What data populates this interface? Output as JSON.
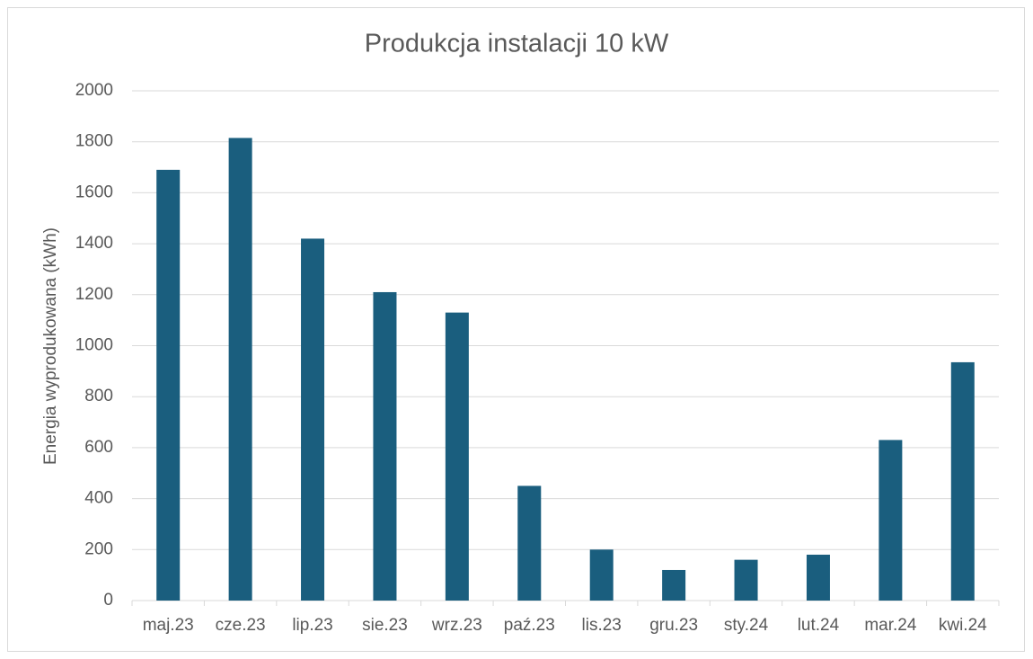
{
  "chart_data": {
    "type": "bar",
    "title": "Produkcja instalacji 10 kW",
    "y_label": "Energia wyprodukowana (kWh)",
    "categories": [
      "maj.23",
      "cze.23",
      "lip.23",
      "sie.23",
      "wrz.23",
      "paź.23",
      "lis.23",
      "gru.23",
      "sty.24",
      "lut.24",
      "mar.24",
      "kwi.24"
    ],
    "values": [
      1690,
      1815,
      1420,
      1210,
      1130,
      450,
      200,
      120,
      160,
      180,
      630,
      935
    ],
    "color": "#1a5e7e",
    "ylim": [
      0,
      2000
    ],
    "yticks": [
      0,
      200,
      400,
      600,
      800,
      1000,
      1200,
      1400,
      1600,
      1800,
      2000
    ],
    "grid": true
  }
}
